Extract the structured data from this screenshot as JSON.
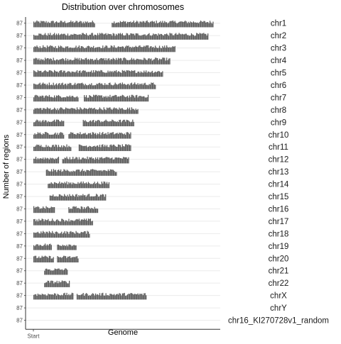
{
  "chart_data": {
    "type": "bar",
    "title": "Distribution over chromosomes",
    "xlabel": "Genome",
    "ylabel": "Number of regions",
    "x_tick_labels": [
      "Start"
    ],
    "panel_tick_label": "87",
    "grid": true,
    "legend": "none",
    "bar_color": "#595959",
    "facet_strip": "right",
    "panels": [
      {
        "name": "chr1",
        "span": [
          0.0,
          1.0
        ],
        "gaps": [
          [
            0.34,
            0.43
          ]
        ]
      },
      {
        "name": "chr2",
        "span": [
          0.0,
          0.97
        ],
        "gaps": []
      },
      {
        "name": "chr3",
        "span": [
          0.0,
          0.79
        ],
        "gaps": []
      },
      {
        "name": "chr4",
        "span": [
          0.0,
          0.76
        ],
        "gaps": []
      },
      {
        "name": "chr5",
        "span": [
          0.0,
          0.72
        ],
        "gaps": []
      },
      {
        "name": "chr6",
        "span": [
          0.0,
          0.68
        ],
        "gaps": []
      },
      {
        "name": "chr7",
        "span": [
          0.0,
          0.64
        ],
        "gaps": [
          [
            0.25,
            0.28
          ]
        ]
      },
      {
        "name": "chr8",
        "span": [
          0.0,
          0.58
        ],
        "gaps": []
      },
      {
        "name": "chr9",
        "span": [
          0.0,
          0.56
        ],
        "gaps": [
          [
            0.17,
            0.27
          ]
        ]
      },
      {
        "name": "chr10",
        "span": [
          0.0,
          0.54
        ],
        "gaps": [
          [
            0.17,
            0.19
          ]
        ]
      },
      {
        "name": "chr11",
        "span": [
          0.0,
          0.54
        ],
        "gaps": [
          [
            0.21,
            0.25
          ]
        ]
      },
      {
        "name": "chr12",
        "span": [
          0.0,
          0.53
        ],
        "gaps": [
          [
            0.14,
            0.16
          ]
        ]
      },
      {
        "name": "chr13",
        "span": [
          0.07,
          0.46
        ],
        "gaps": []
      },
      {
        "name": "chr14",
        "span": [
          0.08,
          0.42
        ],
        "gaps": []
      },
      {
        "name": "chr15",
        "span": [
          0.09,
          0.4
        ],
        "gaps": []
      },
      {
        "name": "chr16",
        "span": [
          0.0,
          0.36
        ],
        "gaps": [
          [
            0.12,
            0.19
          ]
        ]
      },
      {
        "name": "chr17",
        "span": [
          0.0,
          0.33
        ],
        "gaps": []
      },
      {
        "name": "chr18",
        "span": [
          0.0,
          0.31
        ],
        "gaps": []
      },
      {
        "name": "chr19",
        "span": [
          0.0,
          0.24
        ],
        "gaps": [
          [
            0.1,
            0.13
          ]
        ]
      },
      {
        "name": "chr20",
        "span": [
          0.0,
          0.25
        ],
        "gaps": [
          [
            0.11,
            0.13
          ]
        ]
      },
      {
        "name": "chr21",
        "span": [
          0.06,
          0.19
        ],
        "gaps": []
      },
      {
        "name": "chr22",
        "span": [
          0.06,
          0.2
        ],
        "gaps": []
      },
      {
        "name": "chrX",
        "span": [
          0.0,
          0.63
        ],
        "gaps": [
          [
            0.22,
            0.24
          ]
        ]
      },
      {
        "name": "chrY",
        "span": null,
        "gaps": []
      },
      {
        "name": "chr16_KI270728v1_random",
        "span": null,
        "gaps": []
      }
    ]
  }
}
